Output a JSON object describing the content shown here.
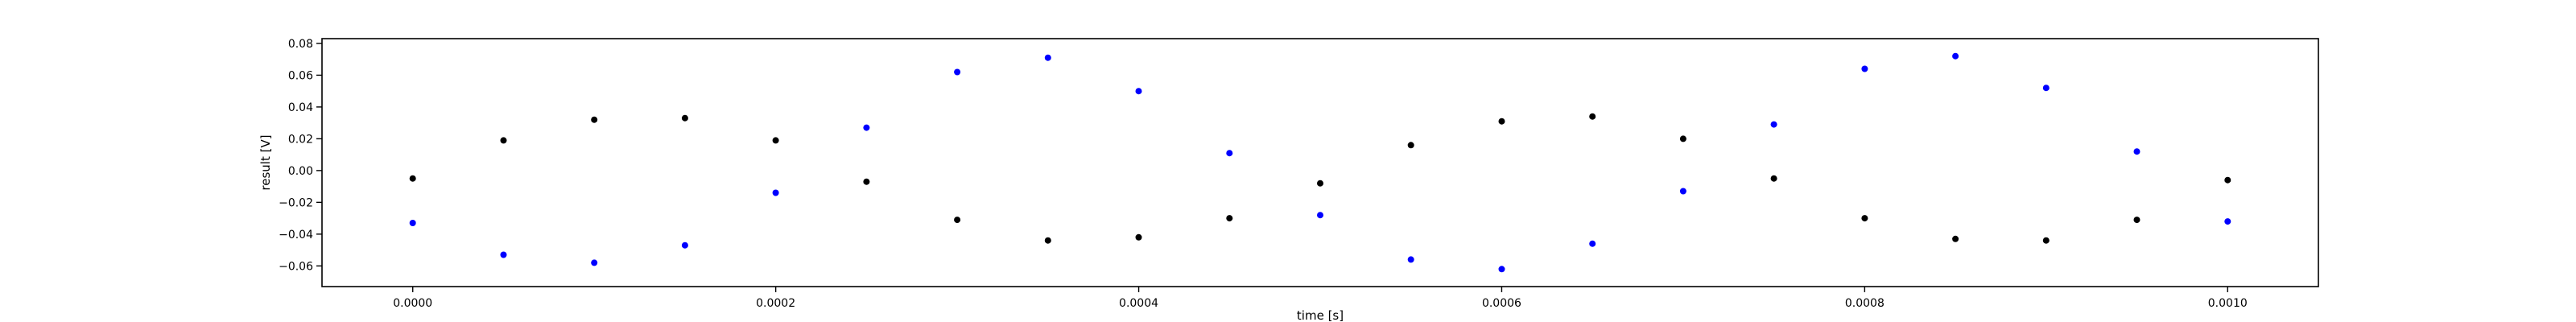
{
  "chart_data": {
    "type": "scatter",
    "title": "",
    "xlabel": "time [s]",
    "ylabel": "result [V]",
    "xlim": [
      -5e-05,
      0.00105
    ],
    "ylim": [
      -0.073,
      0.083
    ],
    "grid": false,
    "legend": "none",
    "x_ticks": [
      0.0,
      0.0002,
      0.0004,
      0.0006,
      0.0008,
      0.001
    ],
    "x_tick_labels": [
      "0.0000",
      "0.0002",
      "0.0004",
      "0.0006",
      "0.0008",
      "0.0010"
    ],
    "y_ticks": [
      -0.06,
      -0.04,
      -0.02,
      0.0,
      0.02,
      0.04,
      0.06,
      0.08
    ],
    "y_tick_labels": [
      "−0.06",
      "−0.04",
      "−0.02",
      "0.00",
      "0.02",
      "0.04",
      "0.06",
      "0.08"
    ],
    "series": [
      {
        "color": "#0000ff",
        "x": [
          0.0,
          5e-05,
          0.0001,
          0.00015,
          0.0002,
          0.00025,
          0.0003,
          0.00035,
          0.0004,
          0.00045,
          0.0005,
          0.00055,
          0.0006,
          0.00065,
          0.0007,
          0.00075,
          0.0008,
          0.00085,
          0.0009,
          0.00095,
          0.001
        ],
        "y": [
          -0.033,
          -0.053,
          -0.058,
          -0.047,
          -0.014,
          0.027,
          0.062,
          0.071,
          0.05,
          0.011,
          -0.028,
          -0.056,
          -0.062,
          -0.046,
          -0.013,
          0.029,
          0.064,
          0.072,
          0.052,
          0.012,
          -0.032
        ]
      },
      {
        "color": "#000000",
        "x": [
          0.0,
          5e-05,
          0.0001,
          0.00015,
          0.0002,
          0.00025,
          0.0003,
          0.00035,
          0.0004,
          0.00045,
          0.0005,
          0.00055,
          0.0006,
          0.00065,
          0.0007,
          0.00075,
          0.0008,
          0.00085,
          0.0009,
          0.00095,
          0.001
        ],
        "y": [
          -0.005,
          0.019,
          0.032,
          0.033,
          0.019,
          -0.007,
          -0.031,
          -0.044,
          -0.042,
          -0.03,
          -0.008,
          0.016,
          0.031,
          0.034,
          0.02,
          -0.005,
          -0.03,
          -0.043,
          -0.044,
          -0.031,
          -0.006
        ]
      }
    ]
  }
}
